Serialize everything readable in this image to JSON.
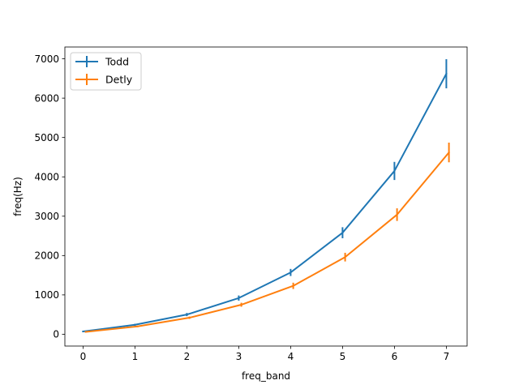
{
  "chart_data": {
    "type": "line",
    "xlabel": "freq_band",
    "ylabel": "freq(Hz)",
    "x_ticks": [
      "0",
      "1",
      "2",
      "3",
      "4",
      "5",
      "6",
      "7"
    ],
    "y_ticks": [
      "0",
      "1000",
      "2000",
      "3000",
      "4000",
      "5000",
      "6000",
      "7000"
    ],
    "xlim": [
      -0.35,
      7.4
    ],
    "ylim": [
      -300,
      7300
    ],
    "grid": false,
    "legend_position": "top-left",
    "series": [
      {
        "name": "Todd",
        "color": "#1f77b4",
        "x": [
          0,
          1,
          2,
          3,
          4,
          5,
          6,
          7
        ],
        "y": [
          70,
          240,
          500,
          920,
          1570,
          2580,
          4150,
          6620
        ],
        "yerr": [
          15,
          25,
          40,
          65,
          90,
          140,
          230,
          370
        ]
      },
      {
        "name": "Detly",
        "color": "#ff7f0e",
        "x": [
          0.05,
          1.05,
          2.05,
          3.05,
          4.05,
          5.05,
          6.05,
          7.05
        ],
        "y": [
          60,
          200,
          420,
          750,
          1230,
          1960,
          3040,
          4620
        ],
        "yerr": [
          10,
          20,
          30,
          50,
          80,
          110,
          160,
          250
        ]
      }
    ]
  }
}
